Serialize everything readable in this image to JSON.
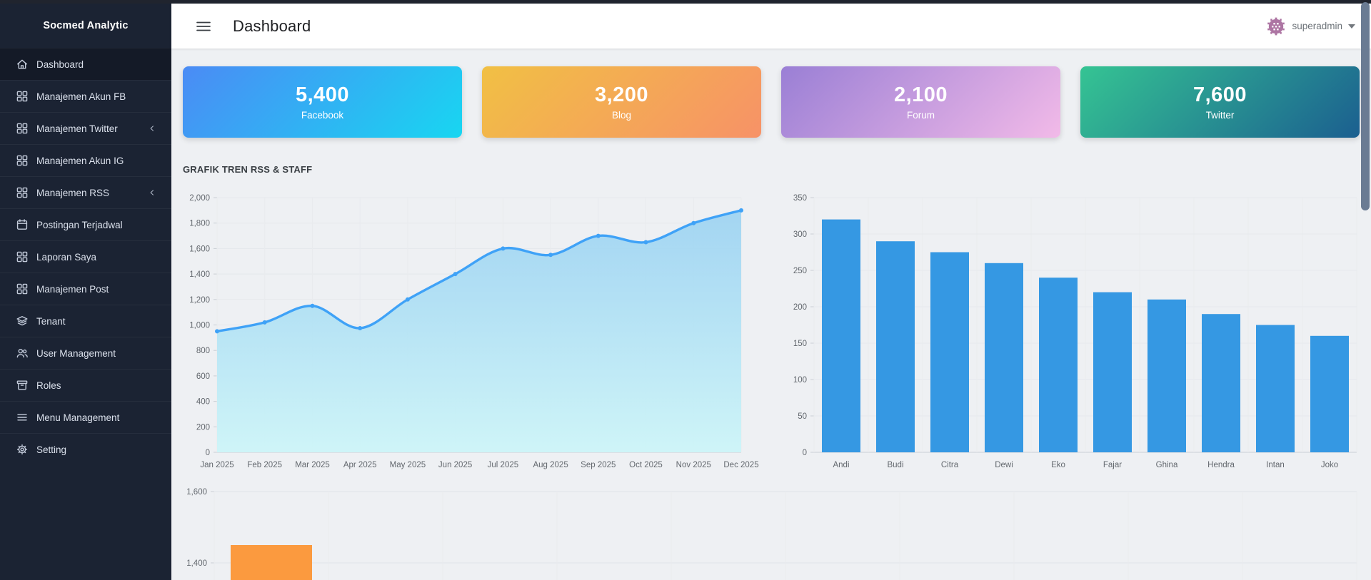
{
  "app": {
    "brand": "Socmed Analytic"
  },
  "header": {
    "title": "Dashboard",
    "user_menu": {
      "username": "superadmin",
      "avatar_color": "#ad75a3"
    }
  },
  "sidebar": {
    "items": [
      {
        "label": "Dashboard",
        "icon": "home-icon",
        "active": true,
        "chevron": false
      },
      {
        "label": "Manajemen Akun FB",
        "icon": "grid-icon",
        "active": false,
        "chevron": false
      },
      {
        "label": "Manajemen Twitter",
        "icon": "grid-icon",
        "active": false,
        "chevron": true
      },
      {
        "label": "Manajemen Akun IG",
        "icon": "grid-icon",
        "active": false,
        "chevron": false
      },
      {
        "label": "Manajemen RSS",
        "icon": "grid-icon",
        "active": false,
        "chevron": true
      },
      {
        "label": "Postingan Terjadwal",
        "icon": "calendar-icon",
        "active": false,
        "chevron": false
      },
      {
        "label": "Laporan Saya",
        "icon": "grid-icon",
        "active": false,
        "chevron": false
      },
      {
        "label": "Manajemen Post",
        "icon": "grid-icon",
        "active": false,
        "chevron": false
      },
      {
        "label": "Tenant",
        "icon": "layers-icon",
        "active": false,
        "chevron": false
      },
      {
        "label": "User Management",
        "icon": "users-icon",
        "active": false,
        "chevron": false
      },
      {
        "label": "Roles",
        "icon": "archive-icon",
        "active": false,
        "chevron": false
      },
      {
        "label": "Menu Management",
        "icon": "list-icon",
        "active": false,
        "chevron": false
      },
      {
        "label": "Setting",
        "icon": "gear-icon",
        "active": false,
        "chevron": false
      }
    ]
  },
  "stat_cards": [
    {
      "value": "5,400",
      "label": "Facebook",
      "gradient": [
        "#4b8bf5",
        "#18d6f1"
      ]
    },
    {
      "value": "3,200",
      "label": "Blog",
      "gradient": [
        "#f1c044",
        "#f79267"
      ]
    },
    {
      "value": "2,100",
      "label": "Forum",
      "gradient": [
        "#9a7fd5",
        "#f2bae8"
      ]
    },
    {
      "value": "7,600",
      "label": "Twitter",
      "gradient": [
        "#35c493",
        "#1b5f90"
      ]
    }
  ],
  "section": {
    "title": "GRAFIK TREN RSS & STAFF"
  },
  "chart_data": [
    {
      "type": "line",
      "name": "rss-trend-line",
      "x": [
        "Jan 2025",
        "Feb 2025",
        "Mar 2025",
        "Apr 2025",
        "May 2025",
        "Jun 2025",
        "Jul 2025",
        "Aug 2025",
        "Sep 2025",
        "Oct 2025",
        "Nov 2025",
        "Dec 2025"
      ],
      "series": [
        {
          "name": "RSS",
          "values": [
            950,
            1020,
            1150,
            975,
            1200,
            1400,
            1600,
            1550,
            1700,
            1650,
            1800,
            1900
          ]
        }
      ],
      "ylim": [
        0,
        2000
      ],
      "ytick_step": 200,
      "grid": true,
      "legend": false,
      "line_color": "#3fa2f7",
      "fill_gradient": [
        "#9bd2f2",
        "#cdf5f8"
      ]
    },
    {
      "type": "bar",
      "name": "staff-bar",
      "categories": [
        "Andi",
        "Budi",
        "Citra",
        "Dewi",
        "Eko",
        "Fajar",
        "Ghina",
        "Hendra",
        "Intan",
        "Joko"
      ],
      "values": [
        320,
        290,
        275,
        260,
        240,
        220,
        210,
        190,
        175,
        160
      ],
      "ylim": [
        0,
        350
      ],
      "ytick_step": 50,
      "grid": true,
      "legend": false,
      "bar_color": "#3598e3"
    },
    {
      "type": "bar",
      "name": "bottom-partial-bar",
      "partially_visible": true,
      "visible_ytick_labels": [
        "1,600",
        "1,400"
      ],
      "visible_ytick_values": [
        1600,
        1400
      ],
      "visible_values": [
        1450
      ],
      "grid": true,
      "bar_color": "#fb9a3f"
    }
  ]
}
